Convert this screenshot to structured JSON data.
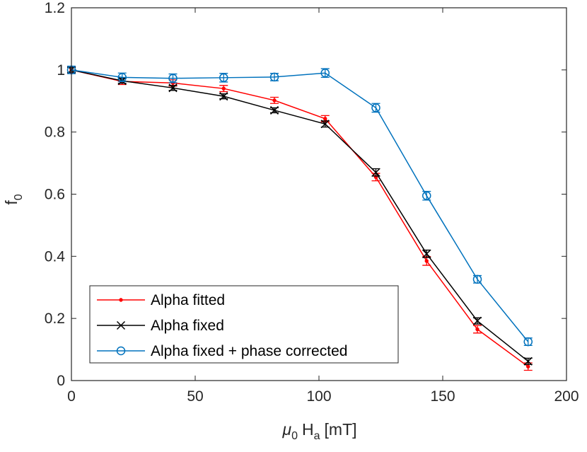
{
  "chart_data": {
    "type": "line",
    "title": "",
    "xlabel": {
      "mu": "μ",
      "mu_sub": "0",
      "H": "H",
      "H_sub": "a",
      "unit": "[mT]"
    },
    "ylabel": {
      "main": "f",
      "sub": "0"
    },
    "xlim": [
      0,
      200
    ],
    "ylim": [
      0,
      1.2
    ],
    "xticks": [
      0,
      50,
      100,
      150,
      200
    ],
    "yticks": [
      0,
      0.2,
      0.4,
      0.6,
      0.8,
      1,
      1.2
    ],
    "xtick_labels": [
      "0",
      "50",
      "100",
      "150",
      "200"
    ],
    "ytick_labels": [
      "0",
      "0.2",
      "0.4",
      "0.6",
      "0.8",
      "1",
      "1.2"
    ],
    "legend_position": "bottom-left",
    "series": [
      {
        "name": "Alpha fitted",
        "color": "#ff0000",
        "marker": "dot",
        "x": [
          0,
          20.5,
          41,
          61.5,
          82,
          102.5,
          123,
          143.5,
          164,
          184.5
        ],
        "y": [
          1.0,
          0.963,
          0.958,
          0.94,
          0.902,
          0.843,
          0.655,
          0.385,
          0.165,
          0.045
        ],
        "err": [
          0.01,
          0.01,
          0.01,
          0.01,
          0.01,
          0.01,
          0.012,
          0.014,
          0.012,
          0.012
        ]
      },
      {
        "name": "Alpha fixed",
        "color": "#000000",
        "marker": "x",
        "x": [
          0,
          20.5,
          41,
          61.5,
          82,
          102.5,
          123,
          143.5,
          164,
          184.5
        ],
        "y": [
          1.0,
          0.965,
          0.942,
          0.915,
          0.87,
          0.826,
          0.67,
          0.408,
          0.192,
          0.062
        ],
        "err": [
          0.008,
          0.008,
          0.008,
          0.008,
          0.008,
          0.01,
          0.012,
          0.012,
          0.01,
          0.01
        ]
      },
      {
        "name": "Alpha fixed + phase corrected",
        "color": "#0072bd",
        "marker": "circle",
        "x": [
          0,
          20.5,
          41,
          61.5,
          82,
          102.5,
          123,
          143.5,
          164,
          184.5
        ],
        "y": [
          1.0,
          0.976,
          0.973,
          0.975,
          0.977,
          0.99,
          0.878,
          0.595,
          0.326,
          0.125
        ],
        "err": [
          0.012,
          0.014,
          0.014,
          0.014,
          0.012,
          0.014,
          0.014,
          0.014,
          0.012,
          0.012
        ]
      }
    ]
  }
}
